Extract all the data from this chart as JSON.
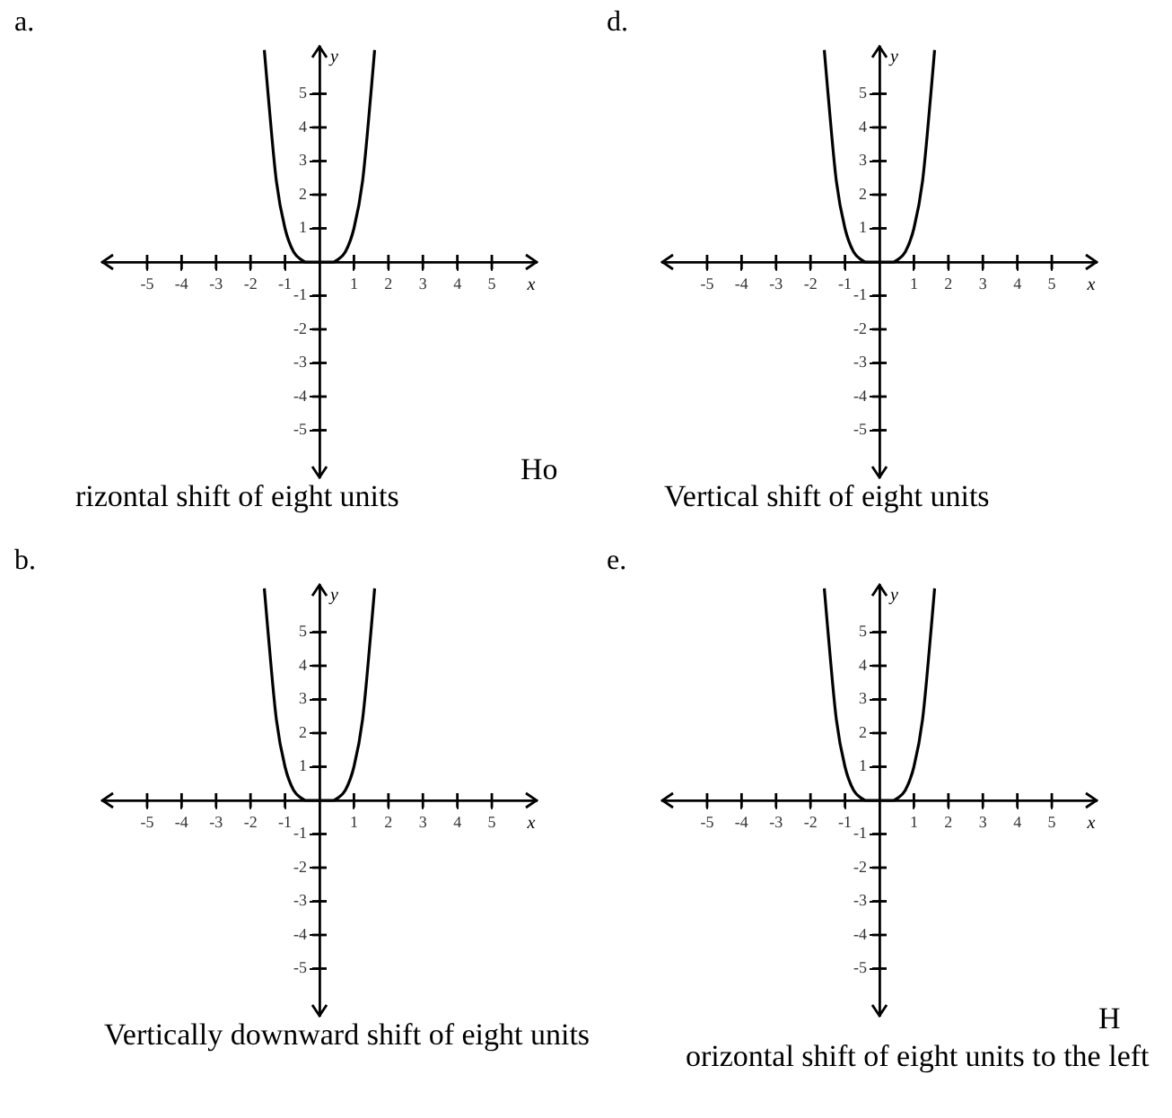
{
  "chart_data": [
    {
      "type": "line",
      "title": "a.",
      "xlabel": "x",
      "ylabel": "y",
      "xlim": [
        -6.3,
        6.3
      ],
      "ylim": [
        -6.4,
        6.4
      ],
      "xticks": [
        -5,
        -4,
        -3,
        -2,
        -1,
        1,
        2,
        3,
        4,
        5
      ],
      "yticks": [
        -5,
        -4,
        -3,
        -2,
        -1,
        1,
        2,
        3,
        4,
        5
      ],
      "marker": "none",
      "legend": false,
      "series": [
        {
          "color": "#000000",
          "x": [
            -1.6,
            -1.5,
            -1.25,
            -1,
            -0.75,
            -0.5,
            -0.4,
            0,
            0.4,
            0.5,
            0.75,
            1,
            1.25,
            1.5,
            1.6
          ],
          "values": [
            6.3,
            5.1,
            2.4,
            1,
            0.3,
            0.05,
            0,
            0,
            0,
            0.05,
            0.3,
            1,
            2.4,
            5.1,
            6.3
          ]
        }
      ],
      "annotations": [
        "Ho",
        "rizontal shift of eight units"
      ]
    },
    {
      "type": "line",
      "title": "d.",
      "xlabel": "x",
      "ylabel": "y",
      "xlim": [
        -6.3,
        6.3
      ],
      "ylim": [
        -6.4,
        6.4
      ],
      "xticks": [
        -5,
        -4,
        -3,
        -2,
        -1,
        1,
        2,
        3,
        4,
        5
      ],
      "yticks": [
        -5,
        -4,
        -3,
        -2,
        -1,
        1,
        2,
        3,
        4,
        5
      ],
      "marker": "none",
      "legend": false,
      "series": [
        {
          "color": "#000000",
          "x": [
            -1.6,
            -1.5,
            -1.25,
            -1,
            -0.75,
            -0.5,
            -0.4,
            0,
            0.4,
            0.5,
            0.75,
            1,
            1.25,
            1.5,
            1.6
          ],
          "values": [
            6.3,
            5.1,
            2.4,
            1,
            0.3,
            0.05,
            0,
            0,
            0,
            0.05,
            0.3,
            1,
            2.4,
            5.1,
            6.3
          ]
        }
      ],
      "annotations": [
        "Vertical shift of eight units"
      ]
    },
    {
      "type": "line",
      "title": "b.",
      "xlabel": "x",
      "ylabel": "y",
      "xlim": [
        -6.3,
        6.3
      ],
      "ylim": [
        -6.4,
        6.4
      ],
      "xticks": [
        -5,
        -4,
        -3,
        -2,
        -1,
        1,
        2,
        3,
        4,
        5
      ],
      "yticks": [
        -5,
        -4,
        -3,
        -2,
        -1,
        1,
        2,
        3,
        4,
        5
      ],
      "marker": "none",
      "legend": false,
      "series": [
        {
          "color": "#000000",
          "x": [
            -1.6,
            -1.5,
            -1.25,
            -1,
            -0.75,
            -0.5,
            -0.4,
            0,
            0.4,
            0.5,
            0.75,
            1,
            1.25,
            1.5,
            1.6
          ],
          "values": [
            6.3,
            5.1,
            2.4,
            1,
            0.3,
            0.05,
            0,
            0,
            0,
            0.05,
            0.3,
            1,
            2.4,
            5.1,
            6.3
          ]
        }
      ],
      "annotations": [
        "Vertically downward shift of eight units"
      ]
    },
    {
      "type": "line",
      "title": "e.",
      "xlabel": "x",
      "ylabel": "y",
      "xlim": [
        -6.3,
        6.3
      ],
      "ylim": [
        -6.4,
        6.4
      ],
      "xticks": [
        -5,
        -4,
        -3,
        -2,
        -1,
        1,
        2,
        3,
        4,
        5
      ],
      "yticks": [
        -5,
        -4,
        -3,
        -2,
        -1,
        1,
        2,
        3,
        4,
        5
      ],
      "marker": "none",
      "legend": false,
      "series": [
        {
          "color": "#000000",
          "x": [
            -1.6,
            -1.5,
            -1.25,
            -1,
            -0.75,
            -0.5,
            -0.4,
            0,
            0.4,
            0.5,
            0.75,
            1,
            1.25,
            1.5,
            1.6
          ],
          "values": [
            6.3,
            5.1,
            2.4,
            1,
            0.3,
            0.05,
            0,
            0,
            0,
            0.05,
            0.3,
            1,
            2.4,
            5.1,
            6.3
          ]
        }
      ],
      "annotations": [
        "H",
        "orizontal shift of eight units to the left"
      ]
    }
  ]
}
